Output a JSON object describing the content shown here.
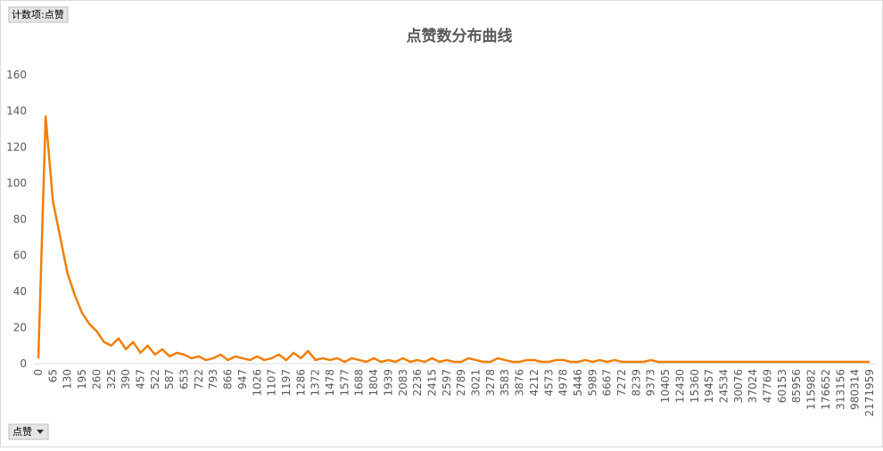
{
  "filter_button": "计数项:点赞",
  "field_button": "点赞",
  "chart_data": {
    "type": "line",
    "title": "点赞数分布曲线",
    "color": "#f07f09",
    "ylim": [
      0,
      160
    ],
    "yticks": [
      0,
      20,
      40,
      60,
      80,
      100,
      120,
      140,
      160
    ],
    "categories": [
      "0",
      null,
      "65",
      null,
      "130",
      null,
      "195",
      null,
      "260",
      null,
      "325",
      null,
      "390",
      null,
      "457",
      null,
      "522",
      null,
      "587",
      null,
      "653",
      null,
      "722",
      null,
      "793",
      null,
      "866",
      null,
      "947",
      null,
      "1026",
      null,
      "1107",
      null,
      "1197",
      null,
      "1286",
      null,
      "1372",
      null,
      "1478",
      null,
      "1577",
      null,
      "1688",
      null,
      "1804",
      null,
      "1939",
      null,
      "2083",
      null,
      "2236",
      null,
      "2415",
      null,
      "2597",
      null,
      "2789",
      null,
      "3021",
      null,
      "3278",
      null,
      "3583",
      null,
      "3876",
      null,
      "4212",
      null,
      "4573",
      null,
      "4978",
      null,
      "5446",
      null,
      "5989",
      null,
      "6667",
      null,
      "7272",
      null,
      "8239",
      null,
      "9373",
      null,
      "10405",
      null,
      "12430",
      null,
      "15360",
      null,
      "19457",
      null,
      "24534",
      null,
      "30076",
      null,
      "37024",
      null,
      "47769",
      null,
      "60153",
      null,
      "85956",
      null,
      "115982",
      null,
      "176652",
      null,
      "313156",
      null,
      "980314",
      null,
      "2171959"
    ],
    "values": [
      3,
      137,
      90,
      70,
      50,
      38,
      28,
      22,
      18,
      12,
      10,
      14,
      8,
      12,
      6,
      10,
      5,
      8,
      4,
      6,
      5,
      3,
      4,
      2,
      3,
      5,
      2,
      4,
      3,
      2,
      4,
      2,
      3,
      5,
      2,
      6,
      3,
      7,
      2,
      3,
      2,
      3,
      1,
      3,
      2,
      1,
      3,
      1,
      2,
      1,
      3,
      1,
      2,
      1,
      3,
      1,
      2,
      1,
      1,
      3,
      2,
      1,
      1,
      3,
      2,
      1,
      1,
      2,
      2,
      1,
      1,
      2,
      2,
      1,
      1,
      2,
      1,
      2,
      1,
      2,
      1,
      1,
      1,
      1,
      2,
      1,
      1,
      1,
      1,
      1,
      1,
      1,
      1,
      1,
      1,
      1,
      1,
      1,
      1,
      1,
      1,
      1,
      1,
      1,
      1,
      1,
      1,
      1,
      1,
      1,
      1,
      1,
      1,
      1,
      1
    ]
  }
}
